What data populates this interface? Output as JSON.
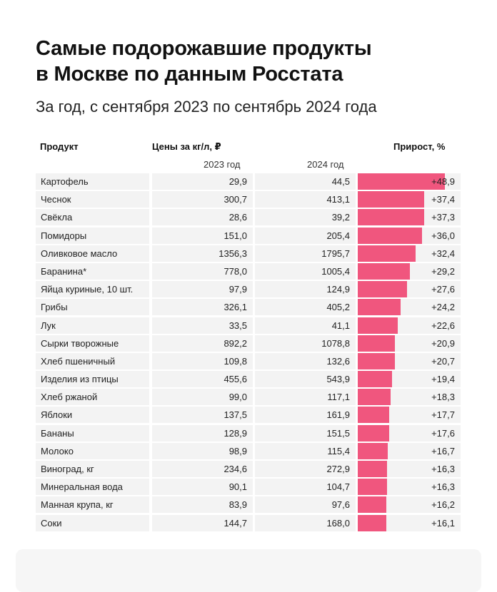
{
  "title_line1": "Самые подорожавшие продукты",
  "title_line2": "в Москве по данным Росстата",
  "subtitle": "За год, с сентября 2023 по сентябрь 2024 года",
  "headers": {
    "product": "Продукт",
    "prices": "Цены за кг/л, ₽",
    "year2023": "2023 год",
    "year2024": "2024 год",
    "growth": "Прирост, %"
  },
  "colors": {
    "bar": "#f0567e",
    "cell_bg": "#f3f3f3"
  },
  "chart_data": {
    "type": "table",
    "columns": [
      "Продукт",
      "2023 год",
      "2024 год",
      "Прирост, %"
    ],
    "rows": [
      {
        "name": "Картофель",
        "p2023": "29,9",
        "p2024": "44,5",
        "growth": 48.9,
        "growth_label": "+48,9"
      },
      {
        "name": "Чеснок",
        "p2023": "300,7",
        "p2024": "413,1",
        "growth": 37.4,
        "growth_label": "+37,4"
      },
      {
        "name": "Свёкла",
        "p2023": "28,6",
        "p2024": "39,2",
        "growth": 37.3,
        "growth_label": "+37,3"
      },
      {
        "name": "Помидоры",
        "p2023": "151,0",
        "p2024": "205,4",
        "growth": 36.0,
        "growth_label": "+36,0"
      },
      {
        "name": "Оливковое масло",
        "p2023": "1356,3",
        "p2024": "1795,7",
        "growth": 32.4,
        "growth_label": "+32,4"
      },
      {
        "name": "Баранина*",
        "p2023": "778,0",
        "p2024": "1005,4",
        "growth": 29.2,
        "growth_label": "+29,2"
      },
      {
        "name": "Яйца куриные, 10 шт.",
        "p2023": "97,9",
        "p2024": "124,9",
        "growth": 27.6,
        "growth_label": "+27,6"
      },
      {
        "name": "Грибы",
        "p2023": "326,1",
        "p2024": "405,2",
        "growth": 24.2,
        "growth_label": "+24,2"
      },
      {
        "name": "Лук",
        "p2023": "33,5",
        "p2024": "41,1",
        "growth": 22.6,
        "growth_label": "+22,6"
      },
      {
        "name": "Сырки творожные",
        "p2023": "892,2",
        "p2024": "1078,8",
        "growth": 20.9,
        "growth_label": "+20,9"
      },
      {
        "name": "Хлеб пшеничный",
        "p2023": "109,8",
        "p2024": "132,6",
        "growth": 20.7,
        "growth_label": "+20,7"
      },
      {
        "name": "Изделия из птицы",
        "p2023": "455,6",
        "p2024": "543,9",
        "growth": 19.4,
        "growth_label": "+19,4"
      },
      {
        "name": "Хлеб ржаной",
        "p2023": "99,0",
        "p2024": "117,1",
        "growth": 18.3,
        "growth_label": "+18,3"
      },
      {
        "name": "Яблоки",
        "p2023": "137,5",
        "p2024": "161,9",
        "growth": 17.7,
        "growth_label": "+17,7"
      },
      {
        "name": "Бананы",
        "p2023": "128,9",
        "p2024": "151,5",
        "growth": 17.6,
        "growth_label": "+17,6"
      },
      {
        "name": "Молоко",
        "p2023": "98,9",
        "p2024": "115,4",
        "growth": 16.7,
        "growth_label": "+16,7"
      },
      {
        "name": "Виноград, кг",
        "p2023": "234,6",
        "p2024": "272,9",
        "growth": 16.3,
        "growth_label": "+16,3"
      },
      {
        "name": "Минеральная вода",
        "p2023": "90,1",
        "p2024": "104,7",
        "growth": 16.3,
        "growth_label": "+16,3"
      },
      {
        "name": "Манная крупа, кг",
        "p2023": "83,9",
        "p2024": "97,6",
        "growth": 16.2,
        "growth_label": "+16,2"
      },
      {
        "name": "Соки",
        "p2023": "144,7",
        "p2024": "168,0",
        "growth": 16.1,
        "growth_label": "+16,1"
      }
    ]
  }
}
